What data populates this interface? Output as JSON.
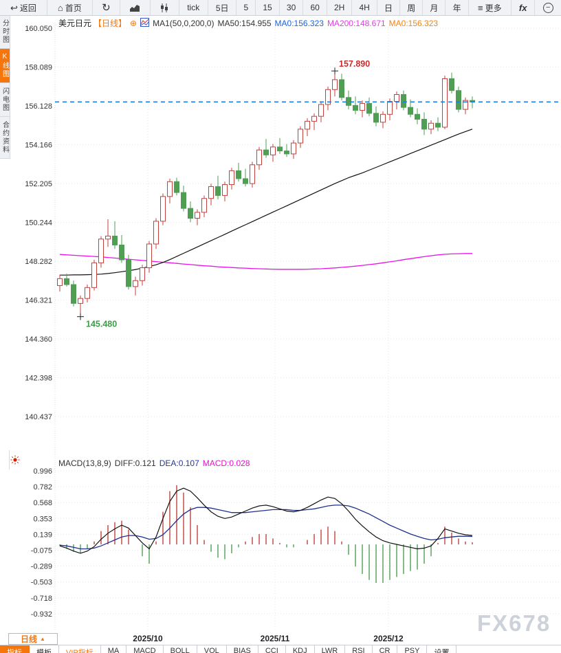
{
  "toolbar": {
    "back": "返回",
    "home": "首页",
    "tick": "tick",
    "d5": "5日",
    "m5": "5",
    "m15": "15",
    "m30": "30",
    "m60": "60",
    "h2": "2H",
    "h4": "4H",
    "day": "日",
    "week": "周",
    "month": "月",
    "year": "年",
    "more": "更多",
    "fx": "fx",
    "zoom_out": "−"
  },
  "sidebar": {
    "items": [
      {
        "label": "分时图",
        "active": false
      },
      {
        "label": "K线图",
        "active": true
      },
      {
        "label": "闪电图",
        "active": false
      },
      {
        "label": "合约资料",
        "active": false
      }
    ]
  },
  "main_header": {
    "symbol": "美元日元",
    "period_tag": "【日线】",
    "plus": "⊕",
    "ma_param": "MA1(50,0,200,0)",
    "ma50": "MA50:154.955",
    "ma0_blue": "MA0:156.323",
    "ma200": "MA200:148.671",
    "ma0_orange": "MA0:156.323"
  },
  "macd_header": {
    "title": "MACD(13,8,9)",
    "diff": "DIFF:0.121",
    "dea": "DEA:0.107",
    "macd": "MACD:0.028"
  },
  "bottom": {
    "period_button": "日线",
    "period_arrow": "▲",
    "dates": [
      "2025/10",
      "2025/11",
      "2025/12"
    ],
    "tabs": [
      {
        "label": "指标"
      },
      {
        "label": "模板"
      },
      {
        "label": "VIP指标"
      },
      {
        "label": "MA"
      },
      {
        "label": "MACD"
      },
      {
        "label": "BOLL"
      },
      {
        "label": "VOL"
      },
      {
        "label": "BIAS"
      },
      {
        "label": "CCI"
      },
      {
        "label": "KDJ"
      },
      {
        "label": "LWR"
      },
      {
        "label": "RSI"
      },
      {
        "label": "CR"
      },
      {
        "label": "PSY"
      },
      {
        "label": "设置"
      }
    ]
  },
  "watermark": "FX678",
  "colors": {
    "accent_orange": "#f7760c",
    "up_red": "#c0413c",
    "down_green": "#4f9e54",
    "ma50_black": "#111111",
    "ma200_magenta": "#ea12ea",
    "price_line_blue": "#1a7ce8",
    "diff_black": "#111111",
    "dea_navy": "#1c2f8c",
    "grid": "#e3e6ea",
    "axis_text": "#333333",
    "high_label_red": "#cc2b2b",
    "low_label_green": "#3f9b4a"
  },
  "chart_data": {
    "type": "candlestick+macd",
    "symbol": "美元日元",
    "period": "日线",
    "x_labels": [
      "2025/10",
      "2025/11",
      "2025/12"
    ],
    "main": {
      "y_ticks": [
        "160.050",
        "158.089",
        "156.128",
        "154.166",
        "152.205",
        "150.244",
        "148.282",
        "146.321",
        "144.360",
        "142.398",
        "140.437"
      ],
      "y_top": 160.05,
      "y_tick_step": 1.9615,
      "current_price_line": 156.323,
      "high_annotation": {
        "index": 40,
        "price": 157.89,
        "label": "157.890"
      },
      "low_annotation": {
        "index": 3,
        "price": 145.48,
        "label": "145.480"
      },
      "candles": [
        [
          147.05,
          147.6,
          146.75,
          147.4
        ],
        [
          147.4,
          147.65,
          147.0,
          147.1
        ],
        [
          147.1,
          147.3,
          146.0,
          146.15
        ],
        [
          146.15,
          146.55,
          145.48,
          146.4
        ],
        [
          146.4,
          147.1,
          146.2,
          146.95
        ],
        [
          146.95,
          148.35,
          146.8,
          148.2
        ],
        [
          148.2,
          149.55,
          147.95,
          149.4
        ],
        [
          149.4,
          150.4,
          149.0,
          149.55
        ],
        [
          149.55,
          150.3,
          148.9,
          149.1
        ],
        [
          149.1,
          149.6,
          148.2,
          148.35
        ],
        [
          148.35,
          148.6,
          146.85,
          147.0
        ],
        [
          147.0,
          147.5,
          146.55,
          147.3
        ],
        [
          147.3,
          148.1,
          147.05,
          147.95
        ],
        [
          147.95,
          149.3,
          147.7,
          149.15
        ],
        [
          149.15,
          150.45,
          148.9,
          150.3
        ],
        [
          150.3,
          151.7,
          150.1,
          151.55
        ],
        [
          151.55,
          152.45,
          151.2,
          152.3
        ],
        [
          152.3,
          152.5,
          151.6,
          151.75
        ],
        [
          151.75,
          152.1,
          150.8,
          150.95
        ],
        [
          150.95,
          151.3,
          150.25,
          150.45
        ],
        [
          150.45,
          150.9,
          150.1,
          150.75
        ],
        [
          150.75,
          151.6,
          150.5,
          151.45
        ],
        [
          151.45,
          152.2,
          151.1,
          152.05
        ],
        [
          152.05,
          152.6,
          151.4,
          151.6
        ],
        [
          151.6,
          152.3,
          151.3,
          152.15
        ],
        [
          152.15,
          153.0,
          151.9,
          152.85
        ],
        [
          152.85,
          153.25,
          152.3,
          152.45
        ],
        [
          152.45,
          152.95,
          152.05,
          152.2
        ],
        [
          152.2,
          153.3,
          152.0,
          153.15
        ],
        [
          153.15,
          154.05,
          152.9,
          153.9
        ],
        [
          153.9,
          154.45,
          153.5,
          153.65
        ],
        [
          153.65,
          154.2,
          153.3,
          154.05
        ],
        [
          154.05,
          154.5,
          153.7,
          153.85
        ],
        [
          153.85,
          154.2,
          153.55,
          153.7
        ],
        [
          153.7,
          154.4,
          153.45,
          154.25
        ],
        [
          154.25,
          155.1,
          154.0,
          154.95
        ],
        [
          154.95,
          155.5,
          154.6,
          155.35
        ],
        [
          155.35,
          155.75,
          154.9,
          155.6
        ],
        [
          155.6,
          156.35,
          155.3,
          156.2
        ],
        [
          156.2,
          157.1,
          155.9,
          156.95
        ],
        [
          156.95,
          157.89,
          156.6,
          157.45
        ],
        [
          157.45,
          157.75,
          156.4,
          156.55
        ],
        [
          156.55,
          156.9,
          155.95,
          156.15
        ],
        [
          156.15,
          156.6,
          155.7,
          155.9
        ],
        [
          155.9,
          156.4,
          155.55,
          156.25
        ],
        [
          156.25,
          156.55,
          155.6,
          155.75
        ],
        [
          155.75,
          156.1,
          155.1,
          155.3
        ],
        [
          155.3,
          155.85,
          155.0,
          155.7
        ],
        [
          155.7,
          156.5,
          155.4,
          156.35
        ],
        [
          156.35,
          156.85,
          155.95,
          156.7
        ],
        [
          156.7,
          156.9,
          155.9,
          156.05
        ],
        [
          156.05,
          156.45,
          155.55,
          155.7
        ],
        [
          155.7,
          156.0,
          155.2,
          155.45
        ],
        [
          155.45,
          155.8,
          154.65,
          154.95
        ],
        [
          154.95,
          155.4,
          154.7,
          155.25
        ],
        [
          155.25,
          155.55,
          154.85,
          155.05
        ],
        [
          155.05,
          157.65,
          154.95,
          157.5
        ],
        [
          157.5,
          157.8,
          156.75,
          156.9
        ],
        [
          156.9,
          157.1,
          155.8,
          155.95
        ],
        [
          155.95,
          156.55,
          155.7,
          156.4
        ],
        [
          156.4,
          156.6,
          156.0,
          156.32
        ]
      ],
      "ma50": [
        147.58,
        147.58,
        147.59,
        147.59,
        147.6,
        147.61,
        147.63,
        147.66,
        147.7,
        147.75,
        147.8,
        147.86,
        147.93,
        148.01,
        148.1,
        148.22,
        148.36,
        148.52,
        148.68,
        148.84,
        149.0,
        149.16,
        149.32,
        149.48,
        149.64,
        149.8,
        149.96,
        150.12,
        150.28,
        150.44,
        150.6,
        150.76,
        150.92,
        151.08,
        151.24,
        151.4,
        151.56,
        151.72,
        151.88,
        152.04,
        152.2,
        152.35,
        152.5,
        152.62,
        152.74,
        152.88,
        153.02,
        153.16,
        153.3,
        153.44,
        153.58,
        153.72,
        153.86,
        154.0,
        154.14,
        154.28,
        154.42,
        154.56,
        154.7,
        154.83,
        154.955
      ],
      "ma200": [
        148.62,
        148.6,
        148.58,
        148.56,
        148.54,
        148.52,
        148.5,
        148.47,
        148.44,
        148.41,
        148.38,
        148.35,
        148.32,
        148.29,
        148.26,
        148.23,
        148.2,
        148.17,
        148.14,
        148.11,
        148.08,
        148.05,
        148.03,
        148.0,
        147.98,
        147.96,
        147.94,
        147.93,
        147.91,
        147.9,
        147.89,
        147.88,
        147.87,
        147.87,
        147.87,
        147.87,
        147.88,
        147.89,
        147.9,
        147.92,
        147.94,
        147.97,
        148.0,
        148.03,
        148.07,
        148.11,
        148.15,
        148.2,
        148.25,
        148.3,
        148.36,
        148.41,
        148.46,
        148.51,
        148.56,
        148.6,
        148.63,
        148.65,
        148.66,
        148.67,
        148.671
      ]
    },
    "macd": {
      "params": "MACD(13,8,9)",
      "y_ticks": [
        "0.996",
        "0.782",
        "0.568",
        "0.353",
        "0.139",
        "-0.075",
        "-0.289",
        "-0.503",
        "-0.718",
        "-0.932"
      ],
      "diff_last": 0.121,
      "dea_last": 0.107,
      "macd_last": 0.028,
      "diff": [
        -0.02,
        -0.05,
        -0.09,
        -0.12,
        -0.09,
        -0.03,
        0.07,
        0.15,
        0.21,
        0.26,
        0.22,
        0.12,
        0.02,
        -0.06,
        0.1,
        0.35,
        0.58,
        0.72,
        0.76,
        0.72,
        0.63,
        0.53,
        0.44,
        0.38,
        0.35,
        0.37,
        0.41,
        0.45,
        0.49,
        0.52,
        0.53,
        0.51,
        0.48,
        0.45,
        0.44,
        0.46,
        0.5,
        0.55,
        0.6,
        0.64,
        0.62,
        0.55,
        0.45,
        0.34,
        0.25,
        0.17,
        0.1,
        0.05,
        0.02,
        0.0,
        -0.02,
        -0.04,
        -0.06,
        -0.05,
        -0.02,
        0.08,
        0.21,
        0.18,
        0.15,
        0.13,
        0.121
      ],
      "dea": [
        -0.01,
        -0.02,
        -0.04,
        -0.06,
        -0.06,
        -0.05,
        -0.02,
        0.02,
        0.06,
        0.1,
        0.12,
        0.12,
        0.1,
        0.07,
        0.08,
        0.13,
        0.22,
        0.32,
        0.41,
        0.47,
        0.5,
        0.5,
        0.49,
        0.47,
        0.45,
        0.43,
        0.43,
        0.43,
        0.44,
        0.45,
        0.46,
        0.47,
        0.47,
        0.47,
        0.46,
        0.46,
        0.47,
        0.48,
        0.5,
        0.52,
        0.53,
        0.53,
        0.52,
        0.49,
        0.45,
        0.41,
        0.36,
        0.31,
        0.26,
        0.22,
        0.18,
        0.14,
        0.11,
        0.08,
        0.06,
        0.07,
        0.09,
        0.1,
        0.11,
        0.11,
        0.107
      ]
    }
  }
}
